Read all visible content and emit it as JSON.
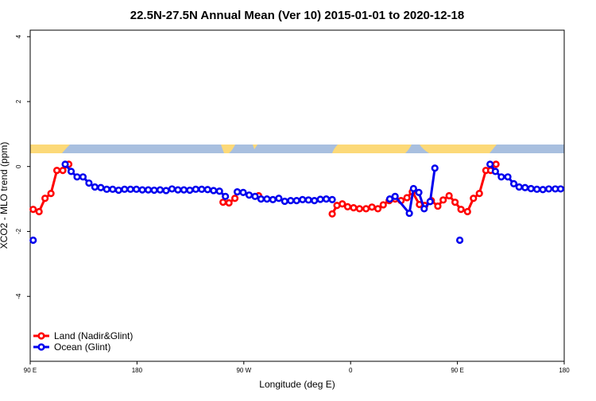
{
  "chart_data": {
    "type": "line",
    "title": "22.5N-27.5N Annual Mean (Ver 10)   2015-01-01 to 2020-12-18",
    "x_label": "Longitude (deg E)",
    "y_label": "XCO2 - MLO trend (ppm)",
    "xlim": [
      90,
      540
    ],
    "ylim": [
      -6,
      4.2
    ],
    "xticks": [
      {
        "value": 90,
        "label": "90 E"
      },
      {
        "value": 180,
        "label": "180"
      },
      {
        "value": 270,
        "label": "90 W"
      },
      {
        "value": 360,
        "label": "0"
      },
      {
        "value": 450,
        "label": "90 E"
      },
      {
        "value": 540,
        "label": "180"
      }
    ],
    "yticks": [
      4,
      2,
      0,
      -2,
      -4
    ],
    "legend": "bottom-left",
    "series": [
      {
        "name": "Land (Nadir&Glint)",
        "color": "#ff0000",
        "x": [
          92.5,
          97.5,
          102.5,
          107.5,
          112.5,
          117.5,
          122.5,
          125,
          252.5,
          257.5,
          262.5,
          270,
          282.5,
          300,
          344.5,
          348.5,
          353,
          357.5,
          362.5,
          367.5,
          373,
          378,
          383,
          387.5,
          392.5,
          397.5,
          402.5,
          407.5,
          412,
          418,
          422.5,
          428,
          433.5,
          438,
          443,
          448,
          453,
          458.5,
          463.5,
          468.5,
          474,
          478,
          482.5
        ],
        "values": [
          -1.32,
          -1.39,
          -0.98,
          -0.83,
          -0.12,
          -0.12,
          0.07,
          null,
          -1.1,
          -1.12,
          -0.98,
          null,
          -0.9,
          null,
          -1.46,
          -1.2,
          -1.15,
          -1.24,
          -1.27,
          -1.3,
          -1.3,
          -1.25,
          -1.3,
          -1.18,
          -1.05,
          -1.0,
          -1.05,
          -0.96,
          -0.78,
          -1.17,
          -1.2,
          -1.05,
          -1.22,
          -1.03,
          -0.9,
          -1.1,
          -1.32,
          -1.39,
          -0.98,
          -0.83,
          -0.12,
          -0.12,
          0.07
        ]
      },
      {
        "name": "Ocean (Glint)",
        "color": "#0000ee",
        "x": [
          92.5,
          100,
          119.5,
          124.5,
          129.5,
          134.5,
          139.5,
          144.5,
          149.5,
          154.5,
          159.5,
          164.5,
          169.5,
          174.5,
          179.5,
          184.5,
          189.5,
          194.5,
          199.5,
          204.5,
          209.5,
          214.5,
          219.5,
          224.5,
          229.5,
          234.5,
          239.5,
          244.5,
          249.5,
          254.5,
          259.5,
          264.5,
          269.5,
          274.5,
          279.5,
          284.5,
          289.5,
          294.5,
          299.5,
          304.5,
          309.5,
          314.5,
          319.5,
          324.5,
          329.5,
          334.5,
          339.5,
          344.5,
          370,
          393,
          397.5,
          409.5,
          413,
          417.5,
          422,
          427,
          431,
          440,
          452,
          465,
          477.5,
          482,
          487,
          492.5,
          497.5,
          502,
          507,
          512,
          517,
          522,
          527,
          532.5,
          537
        ],
        "values": [
          -2.27,
          null,
          0.07,
          -0.15,
          -0.32,
          -0.32,
          -0.51,
          -0.63,
          -0.65,
          -0.7,
          -0.7,
          -0.73,
          -0.7,
          -0.7,
          -0.7,
          -0.72,
          -0.72,
          -0.73,
          -0.72,
          -0.74,
          -0.69,
          -0.72,
          -0.72,
          -0.73,
          -0.7,
          -0.7,
          -0.71,
          -0.74,
          -0.76,
          -0.92,
          null,
          -0.78,
          -0.8,
          -0.88,
          -0.92,
          -1.0,
          -1.0,
          -1.02,
          -0.98,
          -1.07,
          -1.05,
          -1.05,
          -1.02,
          -1.03,
          -1.05,
          -1.01,
          -1.0,
          -1.02,
          null,
          -1.0,
          -0.92,
          -1.44,
          -0.68,
          -0.8,
          -1.3,
          -1.08,
          -0.05,
          null,
          -2.27,
          null,
          0.07,
          -0.15,
          -0.32,
          -0.32,
          -0.53,
          -0.63,
          -0.65,
          -0.68,
          -0.7,
          -0.71,
          -0.69,
          -0.69,
          -0.69
        ]
      }
    ]
  }
}
